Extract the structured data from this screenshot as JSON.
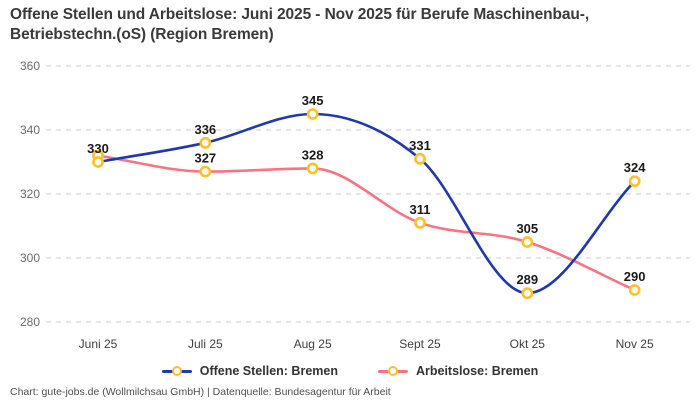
{
  "title": {
    "line1": "Offene Stellen und Arbeitslose: Juni 2025 - Nov 2025 für Berufe Maschinenbau-,",
    "line2": "Betriebstechn.(oS) (Region Bremen)"
  },
  "footer": "Chart: gute-jobs.de (Wollmilchsau GmbH) | Datenquelle: Bundesagentur für Arbeit",
  "colors": {
    "offene_stellen_line": "#2138a9",
    "arbeitslose_line": "#f97383",
    "marker_ring": "#ffbf2e",
    "marker_fill": "#ffffff",
    "gridline": "#cccccc",
    "value_label": "#1a1a1a",
    "y_tick_label": "#6b6b6b",
    "x_tick_label": "#3f3f3f"
  },
  "chart_data": {
    "type": "line",
    "title": "Offene Stellen und Arbeitslose: Juni 2025 - Nov 2025 für Berufe Maschinenbau-, Betriebstechn.(oS) (Region Bremen)",
    "categories": [
      "Juni 25",
      "Juli 25",
      "Aug 25",
      "Sept 25",
      "Okt 25",
      "Nov 25"
    ],
    "series": [
      {
        "name": "Offene Stellen: Bremen",
        "color": "#2138a9",
        "values": [
          330,
          336,
          345,
          331,
          289,
          324
        ],
        "point_labels": [
          "330",
          "336",
          "345",
          "331",
          "289",
          "324"
        ]
      },
      {
        "name": "Arbeitslose: Bremen",
        "color": "#f97383",
        "values": [
          332,
          327,
          328,
          311,
          305,
          290
        ],
        "point_labels": [
          null,
          "327",
          "328",
          "311",
          "305",
          "290"
        ]
      }
    ],
    "ylim": [
      280,
      360
    ],
    "yticks": [
      "280",
      "300",
      "320",
      "340",
      "360"
    ],
    "grid": "horizontal-dashed",
    "curve": "monotone",
    "legend_position": "bottom",
    "marker_style": "open-circle-yellow"
  }
}
